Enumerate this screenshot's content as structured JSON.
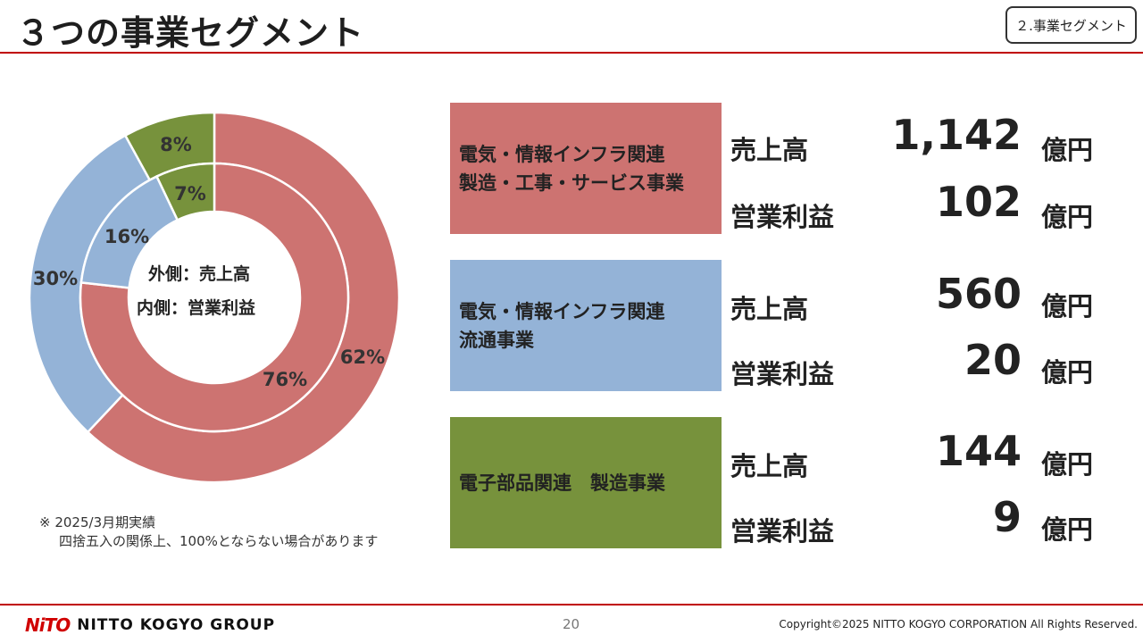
{
  "header": {
    "title": "３つの事業セグメント",
    "section_tag": "２.事業セグメント"
  },
  "chart_data": {
    "type": "pie",
    "variant": "nested-donut",
    "center_label_lines": [
      "外側：売上高",
      "内側：営業利益"
    ],
    "series": [
      {
        "name": "売上高",
        "ring": "outer",
        "values": [
          62,
          30,
          8
        ],
        "labels": [
          "62%",
          "30%",
          "8%"
        ]
      },
      {
        "name": "営業利益",
        "ring": "inner",
        "values": [
          76,
          16,
          7
        ],
        "labels": [
          "76%",
          "16%",
          "7%"
        ]
      }
    ],
    "categories": [
      "電気・情報インフラ関連 製造・工事・サービス事業",
      "電気・情報インフラ関連 流通事業",
      "電子部品関連 製造事業"
    ],
    "colors": [
      "#cd7371",
      "#94b3d7",
      "#77923c"
    ]
  },
  "note": {
    "line1": "※ 2025/3月期実績",
    "line2": "四捨五入の関係上、100%とならない場合があります"
  },
  "segments": [
    {
      "name_line1": "電気・情報インフラ関連",
      "name_line2": "製造・工事・サービス事業",
      "sales_label": "売上高",
      "sales_value": "1,142",
      "sales_unit": "億円",
      "profit_label": "営業利益",
      "profit_value": "102",
      "profit_unit": "億円",
      "color": "#cd7371"
    },
    {
      "name_line1": "電気・情報インフラ関連",
      "name_line2": "流通事業",
      "sales_label": "売上高",
      "sales_value": "560",
      "sales_unit": "億円",
      "profit_label": "営業利益",
      "profit_value": "20",
      "profit_unit": "億円",
      "color": "#94b3d7"
    },
    {
      "name_line1": "電子部品関連　製造事業",
      "name_line2": "",
      "sales_label": "売上高",
      "sales_value": "144",
      "sales_unit": "億円",
      "profit_label": "営業利益",
      "profit_value": "9",
      "profit_unit": "億円",
      "color": "#77923c"
    }
  ],
  "footer": {
    "logo_mark": "NiTO",
    "logo_text": "NITTO KOGYO GROUP",
    "page_number": "20",
    "copyright": "Copyright©2025 NITTO KOGYO CORPORATION All Rights Reserved."
  }
}
